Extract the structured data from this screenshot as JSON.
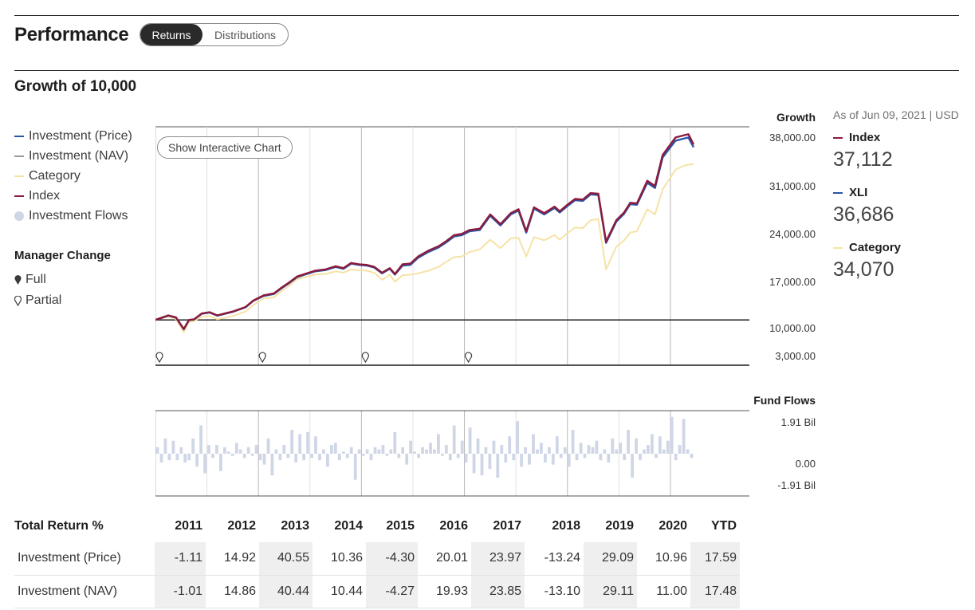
{
  "header": {
    "title": "Performance",
    "tabs": [
      {
        "label": "Returns",
        "active": true
      },
      {
        "label": "Distributions",
        "active": false
      }
    ]
  },
  "section_title": "Growth of 10,000",
  "legend": [
    {
      "label": "Investment (Price)",
      "color": "#2b56a8",
      "kind": "line"
    },
    {
      "label": "Investment (NAV)",
      "color": "#9a9a9a",
      "kind": "line"
    },
    {
      "label": "Category",
      "color": "#f5e3a6",
      "kind": "line"
    },
    {
      "label": "Index",
      "color": "#8c1a3c",
      "kind": "line"
    },
    {
      "label": "Investment Flows",
      "color": "#cfd6e6",
      "kind": "dot"
    }
  ],
  "manager_change": {
    "title": "Manager Change",
    "items": [
      {
        "label": "Full",
        "icon": "filled-pin-icon"
      },
      {
        "label": "Partial",
        "icon": "outline-pin-icon"
      }
    ]
  },
  "show_chart_button": "Show Interactive Chart",
  "as_of": "As of Jun 09, 2021 | USD",
  "side_values": [
    {
      "name": "Index",
      "value": "37,112",
      "color": "#8c1a3c"
    },
    {
      "name": "XLI",
      "value": "36,686",
      "color": "#2b56a8"
    },
    {
      "name": "Category",
      "value": "34,070",
      "color": "#f5e3a6"
    }
  ],
  "chart_data": [
    {
      "type": "line",
      "ylabel": "Growth",
      "yticks": [
        "38,000.00",
        "31,000.00",
        "24,000.00",
        "17,000.00",
        "10,000.00",
        "3,000.00"
      ],
      "ylim": [
        3000,
        38000
      ],
      "x_start": 2011.0,
      "x_end": 2021.45,
      "manager_change_partial_years": [
        2011.0,
        2013.0,
        2015.0,
        2017.0
      ],
      "series": [
        {
          "name": "Index",
          "color": "#8c1a3c",
          "x": [
            2011.0,
            2011.25,
            2011.4,
            2011.55,
            2011.65,
            2011.75,
            2011.9,
            2012.05,
            2012.2,
            2012.35,
            2012.5,
            2012.75,
            2012.9,
            2013.1,
            2013.3,
            2013.45,
            2013.6,
            2013.75,
            2013.9,
            2014.1,
            2014.3,
            2014.5,
            2014.65,
            2014.8,
            2014.95,
            2015.1,
            2015.25,
            2015.4,
            2015.55,
            2015.65,
            2015.8,
            2015.95,
            2016.1,
            2016.3,
            2016.5,
            2016.65,
            2016.8,
            2016.95,
            2017.1,
            2017.3,
            2017.5,
            2017.7,
            2017.9,
            2018.05,
            2018.2,
            2018.35,
            2018.55,
            2018.75,
            2018.85,
            2019.0,
            2019.15,
            2019.3,
            2019.45,
            2019.6,
            2019.75,
            2019.95,
            2020.1,
            2020.22,
            2020.35,
            2020.55,
            2020.7,
            2020.85,
            2021.0,
            2021.1,
            2021.25,
            2021.35,
            2021.45
          ],
          "y": [
            10000,
            10700,
            10400,
            8600,
            10000,
            10100,
            11000,
            11200,
            10700,
            11000,
            11300,
            12000,
            13000,
            13800,
            14100,
            15000,
            15800,
            16700,
            17100,
            17600,
            17800,
            18300,
            18000,
            18800,
            18600,
            18500,
            18200,
            17300,
            18000,
            17100,
            18600,
            18700,
            19800,
            20700,
            21400,
            22200,
            23100,
            23300,
            23900,
            24100,
            26300,
            24800,
            26500,
            27100,
            23700,
            27400,
            26500,
            27500,
            26800,
            27800,
            28700,
            28600,
            29600,
            29500,
            22100,
            25400,
            26600,
            28100,
            28000,
            31500,
            30700,
            35500,
            37112,
            38200,
            38500,
            38700,
            37112
          ]
        },
        {
          "name": "XLI",
          "color": "#2b56a8",
          "x": [
            2011.0,
            2011.25,
            2011.4,
            2011.55,
            2011.65,
            2011.75,
            2011.9,
            2012.05,
            2012.2,
            2012.35,
            2012.5,
            2012.75,
            2012.9,
            2013.1,
            2013.3,
            2013.45,
            2013.6,
            2013.75,
            2013.9,
            2014.1,
            2014.3,
            2014.5,
            2014.65,
            2014.8,
            2014.95,
            2015.1,
            2015.25,
            2015.4,
            2015.55,
            2015.65,
            2015.8,
            2015.95,
            2016.1,
            2016.3,
            2016.5,
            2016.65,
            2016.8,
            2016.95,
            2017.1,
            2017.3,
            2017.5,
            2017.7,
            2017.9,
            2018.05,
            2018.2,
            2018.35,
            2018.55,
            2018.75,
            2018.85,
            2019.0,
            2019.15,
            2019.3,
            2019.45,
            2019.6,
            2019.75,
            2019.95,
            2020.1,
            2020.22,
            2020.35,
            2020.55,
            2020.7,
            2020.85,
            2021.0,
            2021.1,
            2021.25,
            2021.35,
            2021.45
          ],
          "y": [
            10000,
            10650,
            10350,
            8550,
            9950,
            10050,
            10950,
            11150,
            10650,
            10950,
            11250,
            11950,
            12950,
            13700,
            14000,
            14900,
            15700,
            16600,
            17000,
            17500,
            17700,
            18200,
            17900,
            18700,
            18500,
            18400,
            18100,
            17200,
            17900,
            17000,
            18400,
            18500,
            19600,
            20500,
            21200,
            22000,
            22900,
            23100,
            23700,
            23900,
            26100,
            24600,
            26300,
            26900,
            23500,
            27200,
            26300,
            27300,
            26600,
            27600,
            28500,
            28400,
            29400,
            29300,
            21900,
            25200,
            26400,
            27900,
            27800,
            31200,
            30400,
            35100,
            36686,
            37700,
            38000,
            38200,
            36686
          ]
        },
        {
          "name": "Category",
          "color": "#f5e3a6",
          "x": [
            2011.0,
            2011.25,
            2011.4,
            2011.55,
            2011.65,
            2011.75,
            2011.9,
            2012.05,
            2012.2,
            2012.35,
            2012.5,
            2012.75,
            2012.9,
            2013.1,
            2013.3,
            2013.45,
            2013.6,
            2013.75,
            2013.9,
            2014.1,
            2014.3,
            2014.5,
            2014.65,
            2014.8,
            2014.95,
            2015.1,
            2015.25,
            2015.4,
            2015.55,
            2015.65,
            2015.8,
            2015.95,
            2016.1,
            2016.3,
            2016.5,
            2016.65,
            2016.8,
            2016.95,
            2017.1,
            2017.3,
            2017.5,
            2017.7,
            2017.9,
            2018.05,
            2018.2,
            2018.35,
            2018.55,
            2018.75,
            2018.85,
            2019.0,
            2019.15,
            2019.3,
            2019.45,
            2019.6,
            2019.75,
            2019.95,
            2020.1,
            2020.22,
            2020.35,
            2020.55,
            2020.7,
            2020.85,
            2021.0,
            2021.1,
            2021.25,
            2021.35,
            2021.45
          ],
          "y": [
            10000,
            10500,
            10100,
            8100,
            9700,
            9800,
            10500,
            10600,
            10100,
            10300,
            10600,
            11300,
            12300,
            13300,
            13500,
            14500,
            15300,
            16300,
            16600,
            17000,
            17100,
            17500,
            17300,
            17800,
            17700,
            17600,
            17300,
            16200,
            17000,
            15900,
            16900,
            17000,
            17200,
            17600,
            18200,
            19000,
            19700,
            19800,
            20500,
            20900,
            22400,
            21100,
            22600,
            22700,
            19800,
            22800,
            22300,
            23100,
            22400,
            23400,
            24300,
            24200,
            25400,
            25600,
            17800,
            21300,
            22300,
            23500,
            23700,
            27100,
            26300,
            30200,
            32000,
            33200,
            33800,
            34000,
            34070
          ]
        }
      ]
    },
    {
      "type": "bar",
      "ylabel": "Fund Flows",
      "yticks": [
        "1.91 Bil",
        "0.00",
        "-1.91 Bil"
      ],
      "ylim": [
        -1.91,
        1.91
      ],
      "x_start": 2011.0,
      "x_end": 2021.45,
      "values": [
        0.3,
        -0.4,
        0.7,
        -0.3,
        0.6,
        -0.3,
        0.3,
        -0.4,
        -0.3,
        0.7,
        -0.6,
        1.3,
        -0.9,
        0.4,
        -0.2,
        0.4,
        -0.8,
        0.3,
        0.1,
        -0.1,
        0.5,
        0.2,
        -0.2,
        0.3,
        -0.1,
        0.4,
        -0.3,
        -0.5,
        0.7,
        -1.0,
        0.2,
        -0.3,
        0.4,
        -0.2,
        1.1,
        -0.4,
        0.9,
        -0.3,
        1.0,
        -0.2,
        0.8,
        -0.3,
        0.2,
        -0.6,
        0.4,
        0.5,
        -0.3,
        0.1,
        -0.2,
        0.3,
        -1.2,
        0.2,
        -0.1,
        0.2,
        -0.3,
        0.3,
        0.2,
        0.4,
        -0.1,
        0.2,
        1.0,
        -0.2,
        0.3,
        -0.5,
        0.6,
        0.1,
        -0.2,
        0.3,
        0.2,
        0.5,
        0.2,
        0.9,
        -0.1,
        0.4,
        -0.3,
        1.3,
        -0.2,
        0.6,
        -0.4,
        1.2,
        -0.9,
        0.7,
        -1.0,
        0.3,
        -0.7,
        0.6,
        -1.1,
        0.4,
        -0.4,
        0.8,
        -0.3,
        1.5,
        -0.6,
        0.3,
        -0.5,
        0.9,
        0.2,
        0.5,
        -0.4,
        0.3,
        -0.5,
        0.8,
        -0.2,
        0.3,
        -0.6,
        1.1,
        -0.3,
        0.5,
        -0.2,
        0.4,
        0.3,
        0.6,
        -0.3,
        0.2,
        -0.4,
        0.7,
        0.2,
        0.5,
        -0.3,
        1.1,
        -1.1,
        0.7,
        -0.3,
        0.2,
        0.4,
        0.9,
        -0.2,
        0.8,
        0.2,
        0.6,
        1.7,
        -0.3,
        0.4,
        1.6,
        0.2,
        -0.2
      ]
    }
  ],
  "returns_table": {
    "label": "Total Return %",
    "columns": [
      "2011",
      "2012",
      "2013",
      "2014",
      "2015",
      "2016",
      "2017",
      "2018",
      "2019",
      "2020",
      "YTD"
    ],
    "rows": [
      {
        "label": "Investment (Price)",
        "values": [
          "-1.11",
          "14.92",
          "40.55",
          "10.36",
          "-4.30",
          "20.01",
          "23.97",
          "-13.24",
          "29.09",
          "10.96",
          "17.59"
        ]
      },
      {
        "label": "Investment (NAV)",
        "values": [
          "-1.01",
          "14.86",
          "40.44",
          "10.44",
          "-4.27",
          "19.93",
          "23.85",
          "-13.10",
          "29.11",
          "11.00",
          "17.48"
        ]
      }
    ]
  }
}
